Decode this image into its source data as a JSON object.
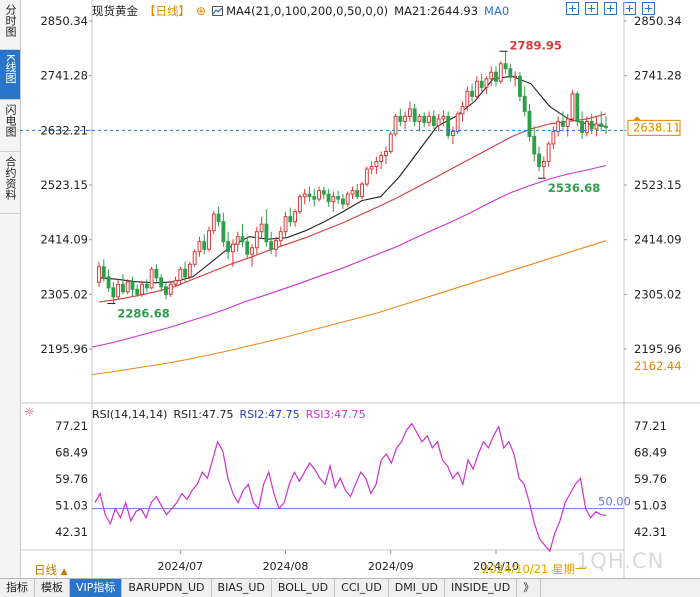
{
  "sidebar": {
    "tabs": [
      {
        "label": "分时图",
        "active": false
      },
      {
        "label": "K线图",
        "active": true
      },
      {
        "label": "闪电图",
        "active": false
      },
      {
        "label": "合约资料",
        "active": false
      }
    ]
  },
  "header": {
    "instrument": "现货黄金",
    "period": "【日线】",
    "ma_label": "MA4(21,0,100,200,0,50,0,0)",
    "ma21_label": "MA21:2644.93",
    "ma0_label": "MA0"
  },
  "indicator": {
    "label": "RSI(14,14,14)",
    "rsi1": "RSI1:47.75",
    "rsi2": "RSI2:47.75",
    "rsi3": "RSI3:47.75"
  },
  "bottom": {
    "period": "日线",
    "crosshair_date": "2024/10/21 星期一",
    "tabs": [
      "指标",
      "模板",
      "VIP指标",
      "BARUPDN_UD",
      "BIAS_UD",
      "BOLL_UD",
      "CCI_UD",
      "DMI_UD",
      "INSIDE_UD"
    ],
    "active_tab": "VIP指标",
    "more": "》"
  },
  "watermark": "1QH.CN",
  "colors": {
    "up": "#d93b3b",
    "down": "#2e9e4b",
    "ma21": "#222222",
    "ma_red": "#d93b3b",
    "ma_magenta": "#cc33cc",
    "ma_orange": "#e88c1c",
    "rsi": "#cc33cc",
    "ref": "#6b7bd6",
    "accent": "#2a74c9"
  },
  "chart_data": [
    {
      "type": "candlestick",
      "title": "现货黄金【日线】",
      "yticks": [
        2850.34,
        2741.28,
        2632.21,
        2523.15,
        2414.09,
        2305.02,
        2195.96
      ],
      "ylim": [
        2140,
        2870
      ],
      "xticks": [
        "2024/07",
        "2024/08",
        "2024/09",
        "2024/10"
      ],
      "last_price": 2638.11,
      "current_price_line": 2632.21,
      "extra_label": 2162.44,
      "annotations": [
        {
          "text": "2789.95",
          "value": 2789.95,
          "kind": "high"
        },
        {
          "text": "2536.68",
          "value": 2536.68,
          "kind": "low"
        },
        {
          "text": "2286.68",
          "value": 2286.68,
          "kind": "low"
        }
      ],
      "ohlc": [
        [
          2329,
          2370,
          2320,
          2360
        ],
        [
          2360,
          2375,
          2330,
          2340
        ],
        [
          2340,
          2355,
          2310,
          2318
        ],
        [
          2318,
          2330,
          2287,
          2300
        ],
        [
          2300,
          2335,
          2295,
          2325
        ],
        [
          2325,
          2345,
          2305,
          2310
        ],
        [
          2310,
          2335,
          2305,
          2330
        ],
        [
          2330,
          2340,
          2300,
          2315
        ],
        [
          2315,
          2325,
          2300,
          2305
        ],
        [
          2305,
          2332,
          2300,
          2325
        ],
        [
          2325,
          2335,
          2310,
          2318
        ],
        [
          2318,
          2360,
          2315,
          2355
        ],
        [
          2355,
          2365,
          2330,
          2338
        ],
        [
          2338,
          2345,
          2310,
          2320
        ],
        [
          2320,
          2330,
          2295,
          2305
        ],
        [
          2305,
          2330,
          2300,
          2325
        ],
        [
          2325,
          2340,
          2320,
          2333
        ],
        [
          2333,
          2360,
          2325,
          2355
        ],
        [
          2355,
          2370,
          2330,
          2340
        ],
        [
          2340,
          2370,
          2335,
          2365
        ],
        [
          2365,
          2395,
          2360,
          2390
        ],
        [
          2390,
          2420,
          2380,
          2410
        ],
        [
          2410,
          2425,
          2385,
          2395
        ],
        [
          2395,
          2440,
          2390,
          2432
        ],
        [
          2432,
          2472,
          2425,
          2465
        ],
        [
          2465,
          2480,
          2440,
          2450
        ],
        [
          2450,
          2468,
          2400,
          2410
        ],
        [
          2410,
          2430,
          2375,
          2390
        ],
        [
          2390,
          2415,
          2360,
          2405
        ],
        [
          2405,
          2430,
          2390,
          2420
        ],
        [
          2420,
          2445,
          2400,
          2410
        ],
        [
          2410,
          2420,
          2375,
          2385
        ],
        [
          2385,
          2405,
          2360,
          2398
        ],
        [
          2398,
          2440,
          2385,
          2430
        ],
        [
          2430,
          2460,
          2415,
          2445
        ],
        [
          2445,
          2475,
          2400,
          2410
        ],
        [
          2410,
          2430,
          2385,
          2395
        ],
        [
          2395,
          2420,
          2380,
          2412
        ],
        [
          2412,
          2440,
          2400,
          2430
        ],
        [
          2430,
          2470,
          2420,
          2460
        ],
        [
          2460,
          2478,
          2440,
          2450
        ],
        [
          2450,
          2475,
          2440,
          2470
        ],
        [
          2470,
          2505,
          2465,
          2500
        ],
        [
          2500,
          2515,
          2485,
          2505
        ],
        [
          2505,
          2520,
          2490,
          2500
        ],
        [
          2500,
          2515,
          2480,
          2495
        ],
        [
          2495,
          2520,
          2490,
          2512
        ],
        [
          2512,
          2520,
          2495,
          2505
        ],
        [
          2505,
          2515,
          2480,
          2490
        ],
        [
          2490,
          2510,
          2470,
          2500
        ],
        [
          2500,
          2512,
          2485,
          2495
        ],
        [
          2495,
          2505,
          2475,
          2485
        ],
        [
          2485,
          2510,
          2480,
          2505
        ],
        [
          2505,
          2520,
          2495,
          2512
        ],
        [
          2512,
          2525,
          2495,
          2500
        ],
        [
          2500,
          2530,
          2495,
          2525
        ],
        [
          2525,
          2560,
          2520,
          2555
        ],
        [
          2555,
          2570,
          2545,
          2560
        ],
        [
          2560,
          2580,
          2545,
          2570
        ],
        [
          2570,
          2590,
          2555,
          2582
        ],
        [
          2582,
          2600,
          2565,
          2590
        ],
        [
          2590,
          2630,
          2585,
          2625
        ],
        [
          2625,
          2665,
          2620,
          2660
        ],
        [
          2660,
          2675,
          2640,
          2650
        ],
        [
          2650,
          2670,
          2635,
          2660
        ],
        [
          2660,
          2690,
          2650,
          2675
        ],
        [
          2675,
          2685,
          2640,
          2650
        ],
        [
          2650,
          2665,
          2630,
          2660
        ],
        [
          2660,
          2668,
          2638,
          2648
        ],
        [
          2648,
          2670,
          2640,
          2660
        ],
        [
          2660,
          2672,
          2635,
          2642
        ],
        [
          2642,
          2665,
          2630,
          2655
        ],
        [
          2655,
          2672,
          2640,
          2660
        ],
        [
          2660,
          2670,
          2615,
          2622
        ],
        [
          2622,
          2640,
          2605,
          2630
        ],
        [
          2630,
          2670,
          2625,
          2665
        ],
        [
          2665,
          2690,
          2650,
          2680
        ],
        [
          2680,
          2720,
          2670,
          2710
        ],
        [
          2710,
          2725,
          2690,
          2700
        ],
        [
          2700,
          2740,
          2695,
          2730
        ],
        [
          2730,
          2745,
          2710,
          2718
        ],
        [
          2718,
          2740,
          2705,
          2735
        ],
        [
          2735,
          2760,
          2720,
          2748
        ],
        [
          2748,
          2760,
          2720,
          2730
        ],
        [
          2730,
          2770,
          2725,
          2765
        ],
        [
          2765,
          2790,
          2745,
          2755
        ],
        [
          2755,
          2765,
          2730,
          2738
        ],
        [
          2738,
          2750,
          2720,
          2740
        ],
        [
          2740,
          2748,
          2690,
          2700
        ],
        [
          2700,
          2720,
          2660,
          2670
        ],
        [
          2670,
          2685,
          2610,
          2620
        ],
        [
          2620,
          2640,
          2570,
          2585
        ],
        [
          2585,
          2600,
          2550,
          2560
        ],
        [
          2560,
          2580,
          2537,
          2570
        ],
        [
          2570,
          2610,
          2560,
          2605
        ],
        [
          2605,
          2640,
          2595,
          2630
        ],
        [
          2630,
          2660,
          2620,
          2650
        ],
        [
          2650,
          2670,
          2630,
          2640
        ],
        [
          2640,
          2665,
          2620,
          2655
        ],
        [
          2655,
          2712,
          2650,
          2705
        ],
        [
          2705,
          2710,
          2640,
          2650
        ],
        [
          2650,
          2670,
          2615,
          2628
        ],
        [
          2628,
          2660,
          2620,
          2650
        ],
        [
          2650,
          2665,
          2625,
          2635
        ],
        [
          2635,
          2660,
          2620,
          2645
        ],
        [
          2645,
          2670,
          2630,
          2640
        ],
        [
          2640,
          2660,
          2625,
          2638
        ]
      ],
      "series": [
        {
          "name": "MA21",
          "values_sampled": [
            2338,
            2335,
            2330,
            2328,
            2330,
            2340,
            2370,
            2400,
            2420,
            2415,
            2418,
            2432,
            2450,
            2470,
            2492,
            2500,
            2540,
            2590,
            2640,
            2660,
            2690,
            2735,
            2740,
            2725,
            2680,
            2655,
            2645,
            2640
          ]
        },
        {
          "values_sampled": [
            2290,
            2295,
            2302,
            2310,
            2320,
            2335,
            2350,
            2365,
            2378,
            2392,
            2405,
            2418,
            2433,
            2448,
            2465,
            2482,
            2500,
            2520,
            2540,
            2560,
            2580,
            2600,
            2620,
            2635,
            2645,
            2650,
            2655,
            2665
          ]
        },
        {
          "values_sampled": [
            2200,
            2208,
            2218,
            2228,
            2238,
            2250,
            2262,
            2275,
            2290,
            2302,
            2315,
            2328,
            2342,
            2355,
            2370,
            2385,
            2400,
            2418,
            2435,
            2452,
            2470,
            2490,
            2508,
            2522,
            2535,
            2545,
            2553,
            2562
          ]
        },
        {
          "values_sampled": [
            2145,
            2150,
            2156,
            2162,
            2168,
            2175,
            2183,
            2191,
            2200,
            2209,
            2218,
            2228,
            2238,
            2248,
            2258,
            2268,
            2280,
            2292,
            2304,
            2316,
            2328,
            2340,
            2352,
            2364,
            2376,
            2388,
            2400,
            2412
          ]
        }
      ]
    },
    {
      "type": "line",
      "title": "RSI(14,14,14)",
      "yticks": [
        77.21,
        68.49,
        59.76,
        51.03,
        42.31
      ],
      "ylim": [
        33,
        82
      ],
      "reference_line": {
        "text": "50.00",
        "value": 50.0
      },
      "series": [
        {
          "name": "RSI1",
          "values": [
            52,
            55,
            48,
            45,
            50,
            47,
            52,
            46,
            49,
            50,
            47,
            52,
            54,
            51,
            48,
            50,
            52,
            55,
            53,
            56,
            58,
            62,
            60,
            66,
            72,
            69,
            60,
            55,
            52,
            56,
            58,
            52,
            50,
            58,
            62,
            55,
            50,
            52,
            58,
            62,
            59,
            62,
            65,
            63,
            60,
            58,
            64,
            57,
            60,
            56,
            54,
            58,
            62,
            60,
            55,
            58,
            66,
            68,
            65,
            70,
            72,
            76,
            78,
            75,
            72,
            74,
            70,
            72,
            66,
            64,
            60,
            62,
            58,
            66,
            63,
            68,
            72,
            70,
            74,
            77,
            70,
            72,
            68,
            60,
            58,
            52,
            45,
            40,
            38,
            36,
            42,
            46,
            52,
            55,
            58,
            60,
            50,
            47,
            49,
            48,
            47.75
          ]
        }
      ]
    }
  ]
}
